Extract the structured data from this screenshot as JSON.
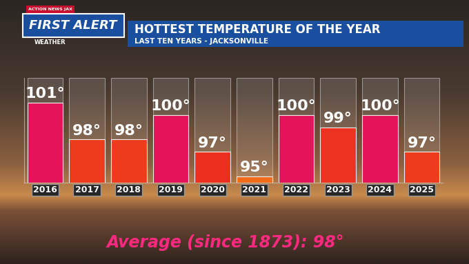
{
  "chart_data": {
    "type": "bar",
    "title": "HOTTEST TEMPERATURE OF THE YEAR",
    "subtitle": "LAST TEN YEARS - JACKSONVILLE",
    "annotations": [
      "ACTION NEWS JAX",
      "FIRST ALERT",
      "WEATHER",
      "Average (since 1873): 98°"
    ],
    "categories": [
      "2016",
      "2017",
      "2018",
      "2019",
      "2020",
      "2021",
      "2022",
      "2023",
      "2024",
      "2025"
    ],
    "values": [
      101,
      98,
      98,
      100,
      97,
      95,
      100,
      99,
      100,
      97
    ],
    "value_labels": [
      "101°",
      "98°",
      "98°",
      "100°",
      "97°",
      "95°",
      "100°",
      "99°",
      "100°",
      "97°"
    ],
    "colors": [
      "#e5145a",
      "#ee3b1c",
      "#ee3b1c",
      "#e5145a",
      "#ee2f20",
      "#f26a1a",
      "#e5145a",
      "#ec3322",
      "#e5145a",
      "#ee3b1c"
    ],
    "ylim": [
      94.5,
      103
    ],
    "yticks": [],
    "tick_labels": "x",
    "data_labels": true,
    "grid": false
  }
}
